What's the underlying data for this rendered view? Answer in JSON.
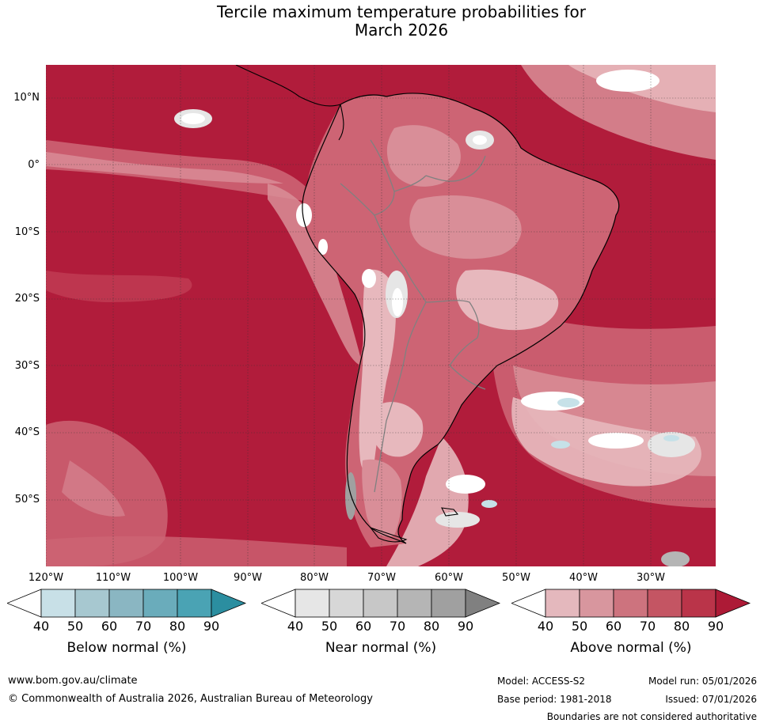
{
  "title": {
    "line1": "Tercile maximum temperature probabilities for",
    "line2": "March 2026"
  },
  "map": {
    "latitude_labels": [
      "10°N",
      "0°",
      "10°S",
      "20°S",
      "30°S",
      "40°S",
      "50°S"
    ],
    "longitude_labels": [
      "120°W",
      "110°W",
      "100°W",
      "90°W",
      "80°W",
      "70°W",
      "60°W",
      "50°W",
      "40°W",
      "30°W"
    ],
    "colors": {
      "ocean_above_90": "#b11c3b",
      "above_80": "#c23d55",
      "above_70": "#cd6474",
      "above_60": "#d98e98",
      "above_50": "#e7b8bd",
      "near_normal": "#e6e6e6",
      "below_normal": "#c6e1e8",
      "coastline": "#000000",
      "borders": "#808080",
      "gridlines": "#333333"
    }
  },
  "legend": {
    "below": {
      "title": "Below normal (%)",
      "ticks": [
        "40",
        "50",
        "60",
        "70",
        "80",
        "90"
      ],
      "colors": [
        "#ffffff",
        "#c8e0e7",
        "#a7c8d0",
        "#8ab6c2",
        "#6aacbb",
        "#4aa3b4",
        "#2b8ea0"
      ]
    },
    "near": {
      "title": "Near normal (%)",
      "ticks": [
        "40",
        "50",
        "60",
        "70",
        "80",
        "90"
      ],
      "colors": [
        "#ffffff",
        "#e6e6e6",
        "#d7d7d7",
        "#c7c7c7",
        "#b5b5b5",
        "#a0a0a0",
        "#808080"
      ]
    },
    "above": {
      "title": "Above normal (%)",
      "ticks": [
        "40",
        "50",
        "60",
        "70",
        "80",
        "90"
      ],
      "colors": [
        "#ffffff",
        "#e4b8bd",
        "#d8969e",
        "#cd737e",
        "#c45563",
        "#ba3449",
        "#ad1a36"
      ]
    }
  },
  "footer": {
    "website": "www.bom.gov.au/climate",
    "copyright": "© Commonwealth of Australia 2026, Australian Bureau of Meteorology",
    "model": "Model: ACCESS-S2",
    "model_run": "Model run: 05/01/2026",
    "base_period": "Base period: 1981-2018",
    "issued": "Issued: 07/01/2026",
    "disclaimer": "Boundaries are not considered authoritative"
  }
}
